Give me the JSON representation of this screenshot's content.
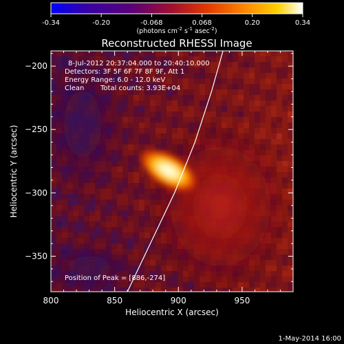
{
  "colorbar": {
    "ticks": [
      "-0.34",
      "-0.20",
      "-0.068",
      "0.068",
      "0.20",
      "0.34"
    ],
    "unit_parts": [
      "(photons cm",
      "-2",
      " s",
      "-1",
      " asec",
      "-2",
      ")"
    ]
  },
  "title": "Reconstructed RHESSI Image",
  "annotations": {
    "line1": "8-Jul-2012 20:37:04.000 to 20:40:10.000",
    "line2": "Detectors: 3F 5F 6F 7F 8F 9F, Att 1",
    "line3": "Energy Range: 6.0 - 12.0 keV",
    "line4_a": "Clean",
    "line4_b": "Total counts: 3.93E+04",
    "peak": "Position of Peak = [886,-274]"
  },
  "footer": {
    "date": "1-May-2014 16:00"
  },
  "chart_data": {
    "type": "heatmap",
    "title": "Reconstructed RHESSI Image",
    "xlabel": "Heliocentric X (arcsec)",
    "ylabel": "Heliocentric Y (arcsec)",
    "xlim": [
      800,
      990
    ],
    "ylim": [
      -378,
      -188
    ],
    "xticks": [
      800,
      850,
      900,
      950
    ],
    "yticks": [
      -200,
      -250,
      -300,
      -350
    ],
    "color_range": [
      -0.34,
      0.34
    ],
    "colormap": [
      "#0000ff",
      "#3a0090",
      "#5a0070",
      "#a01020",
      "#e04000",
      "#ff8800",
      "#ffd000",
      "#ffffff"
    ],
    "peak": [
      886,
      -274
    ],
    "peak_value": 0.34,
    "limb_curve": [
      [
        860,
        -378
      ],
      [
        878,
        -340
      ],
      [
        897,
        -300
      ],
      [
        913,
        -260
      ],
      [
        926,
        -220
      ],
      [
        935,
        -188
      ]
    ]
  }
}
